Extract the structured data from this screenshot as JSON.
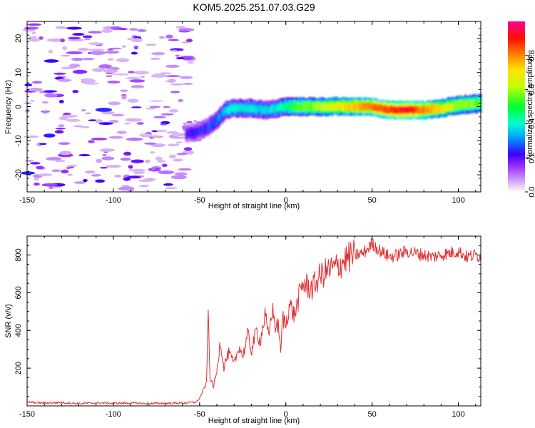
{
  "title": "KOM5.2025.251.07.03.G29",
  "chart_data": [
    {
      "type": "heatmap",
      "name": "spectrogram",
      "xlabel": "Height of straight line (km)",
      "ylabel": "Frequency (Hz)",
      "xlim": [
        -150,
        113
      ],
      "ylim": [
        -25,
        25
      ],
      "xticks": [
        -150,
        -100,
        -50,
        0,
        50,
        100
      ],
      "yticks": [
        -20,
        -10,
        0,
        10,
        20
      ],
      "grid": false,
      "colorbar": {
        "label": "Normalized spectral amplitude",
        "range": [
          0,
          1
        ],
        "ticks": [
          "0.0",
          "0.2",
          "0.4",
          "0.6",
          "0.8"
        ],
        "tick_values": [
          0,
          0.2,
          0.4,
          0.6,
          0.8
        ],
        "stops": [
          {
            "v": 0.0,
            "color": "#ffffff"
          },
          {
            "v": 0.05,
            "color": "#d9b8f5"
          },
          {
            "v": 0.15,
            "color": "#9b30ff"
          },
          {
            "v": 0.22,
            "color": "#3a00ff"
          },
          {
            "v": 0.32,
            "color": "#00a0ff"
          },
          {
            "v": 0.4,
            "color": "#00ffd0"
          },
          {
            "v": 0.5,
            "color": "#00ff30"
          },
          {
            "v": 0.62,
            "color": "#c8ff00"
          },
          {
            "v": 0.72,
            "color": "#ffe000"
          },
          {
            "v": 0.82,
            "color": "#ff7000"
          },
          {
            "v": 0.9,
            "color": "#ff1000"
          },
          {
            "v": 1.0,
            "color": "#ff0090"
          }
        ]
      },
      "ridge": {
        "x": [
          -58,
          -52,
          -45,
          -40,
          -35,
          -30,
          -20,
          -10,
          0,
          10,
          20,
          30,
          40,
          50,
          60,
          70,
          80,
          90,
          100,
          113
        ],
        "freq": [
          -8,
          -7.5,
          -6,
          -4,
          -1,
          -0.5,
          -0.5,
          -1,
          0,
          0,
          0,
          0,
          0,
          0,
          -1,
          -1,
          -1,
          -0.5,
          0.5,
          1
        ],
        "amplitude": [
          0.2,
          0.22,
          0.25,
          0.28,
          0.35,
          0.4,
          0.38,
          0.35,
          0.45,
          0.55,
          0.6,
          0.7,
          0.75,
          0.8,
          0.88,
          0.92,
          0.8,
          0.7,
          0.6,
          0.55
        ]
      },
      "noise_region_x": [
        -150,
        -55
      ],
      "noise_amplitude_range": [
        0.05,
        0.25
      ]
    },
    {
      "type": "line",
      "name": "snr",
      "xlabel": "Height of straight line (km)",
      "ylabel": "SNR (v/v)",
      "xlim": [
        -150,
        113
      ],
      "ylim": [
        0,
        900
      ],
      "xticks": [
        -150,
        -100,
        -50,
        0,
        50,
        100
      ],
      "yticks": [
        200,
        400,
        600,
        800
      ],
      "grid": false,
      "color": "#e03030",
      "series": [
        {
          "name": "SNR",
          "x": [
            -150,
            -140,
            -130,
            -120,
            -110,
            -100,
            -90,
            -80,
            -70,
            -60,
            -52,
            -50,
            -48,
            -46,
            -45,
            -44,
            -42,
            -40,
            -38,
            -36,
            -35,
            -33,
            -30,
            -27,
            -25,
            -22,
            -20,
            -17,
            -15,
            -12,
            -10,
            -8,
            -6,
            -4,
            -3,
            -2,
            0,
            2,
            5,
            8,
            10,
            15,
            20,
            25,
            30,
            35,
            40,
            45,
            50,
            55,
            60,
            65,
            70,
            75,
            80,
            85,
            90,
            95,
            100,
            105,
            110,
            113
          ],
          "values": [
            20,
            15,
            18,
            12,
            16,
            14,
            15,
            12,
            14,
            15,
            20,
            40,
            80,
            120,
            500,
            150,
            100,
            180,
            350,
            200,
            240,
            280,
            220,
            320,
            260,
            380,
            290,
            400,
            340,
            480,
            360,
            520,
            420,
            420,
            260,
            470,
            430,
            540,
            480,
            590,
            650,
            620,
            690,
            720,
            740,
            780,
            800,
            810,
            860,
            820,
            790,
            800,
            820,
            810,
            800,
            790,
            800,
            810,
            820,
            790,
            800,
            790
          ]
        }
      ]
    }
  ]
}
